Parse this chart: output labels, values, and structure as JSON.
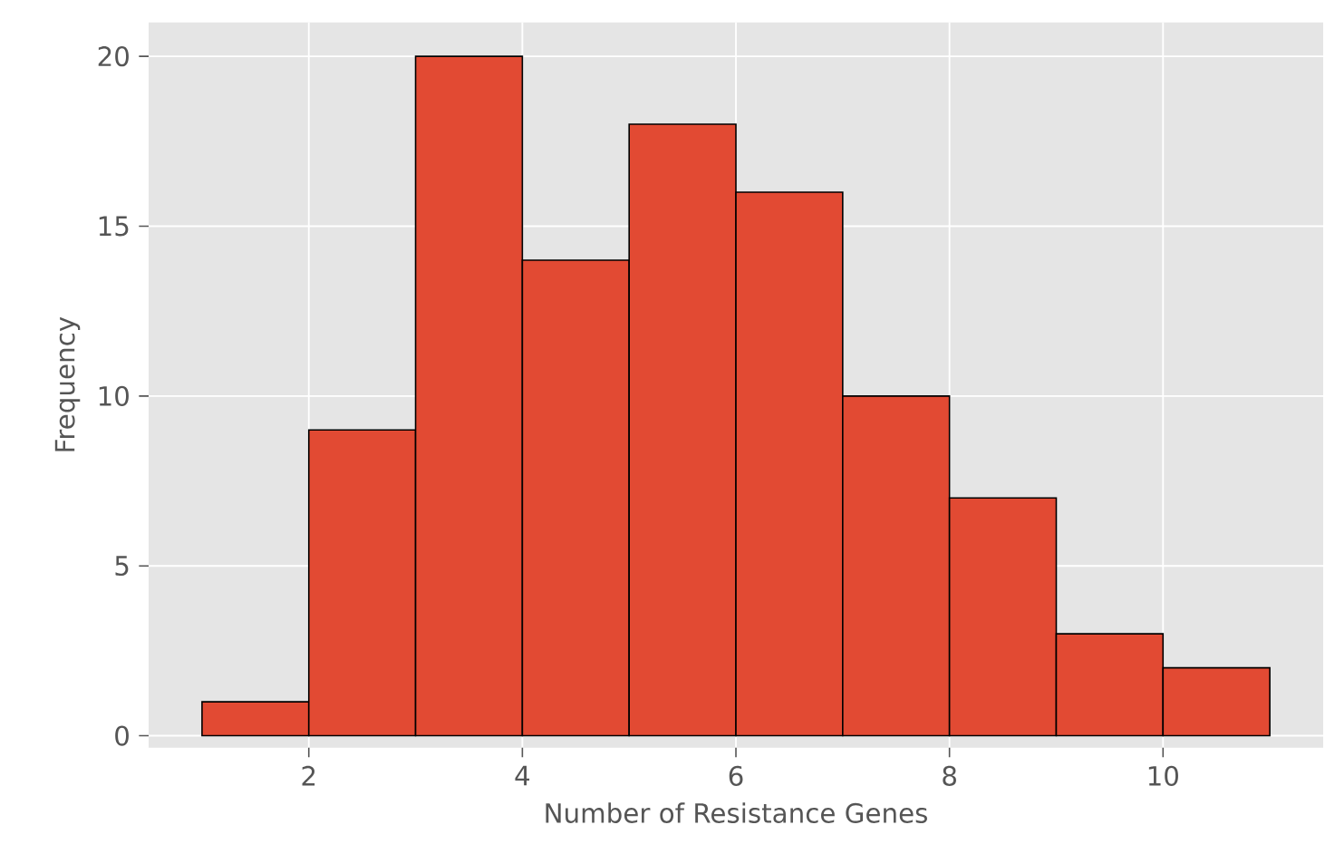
{
  "chart_data": {
    "type": "histogram",
    "xlabel": "Number of Resistance Genes",
    "ylabel": "Frequency",
    "bins": [
      1,
      2,
      3,
      4,
      5,
      6,
      7,
      8,
      9,
      10,
      11
    ],
    "values": [
      1,
      9,
      20,
      14,
      18,
      16,
      10,
      7,
      3,
      2
    ],
    "color": "#e24a33",
    "xlim": [
      0.5,
      11.5
    ],
    "ylim": [
      -0.35,
      21
    ],
    "xticks": [
      2,
      4,
      6,
      8,
      10
    ],
    "yticks": [
      0,
      5,
      10,
      15,
      20
    ],
    "grid": true
  }
}
